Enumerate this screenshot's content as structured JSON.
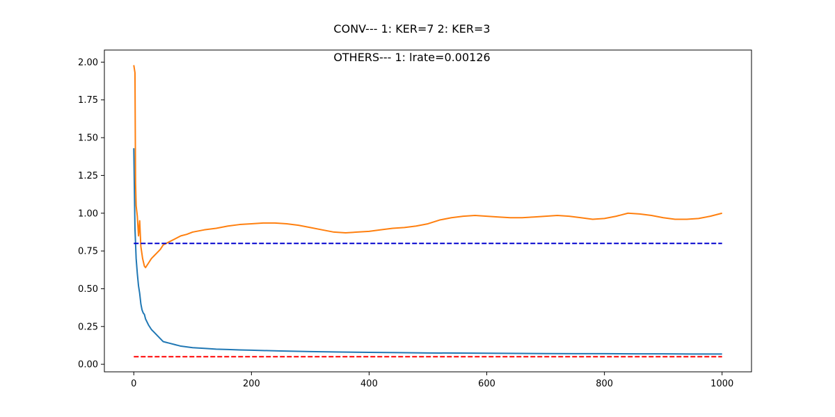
{
  "chart_data": {
    "type": "line",
    "title": "CONV--- 1: KER=7   2: KER=3",
    "subtitle": "OTHERS--- 1: lrate=0.00126",
    "xlabel": "",
    "ylabel": "",
    "xlim": [
      -50,
      1050
    ],
    "ylim": [
      -0.05,
      2.08
    ],
    "grid": false,
    "legend": "none",
    "x_ticks": [
      0,
      200,
      400,
      600,
      800,
      1000
    ],
    "x_tick_labels": [
      "0",
      "200",
      "400",
      "600",
      "800",
      "1000"
    ],
    "y_ticks": [
      0.0,
      0.25,
      0.5,
      0.75,
      1.0,
      1.25,
      1.5,
      1.75,
      2.0
    ],
    "y_tick_labels": [
      "0.00",
      "0.25",
      "0.50",
      "0.75",
      "1.00",
      "1.25",
      "1.50",
      "1.75",
      "2.00"
    ],
    "series": [
      {
        "color": "#1f77b4",
        "style": "solid",
        "points": [
          [
            0,
            1.43
          ],
          [
            2,
            0.9
          ],
          [
            4,
            0.7
          ],
          [
            6,
            0.6
          ],
          [
            8,
            0.52
          ],
          [
            10,
            0.47
          ],
          [
            12,
            0.4
          ],
          [
            14,
            0.36
          ],
          [
            16,
            0.34
          ],
          [
            18,
            0.33
          ],
          [
            20,
            0.3
          ],
          [
            25,
            0.26
          ],
          [
            30,
            0.23
          ],
          [
            35,
            0.21
          ],
          [
            40,
            0.19
          ],
          [
            45,
            0.17
          ],
          [
            50,
            0.15
          ],
          [
            55,
            0.145
          ],
          [
            60,
            0.14
          ],
          [
            70,
            0.13
          ],
          [
            80,
            0.12
          ],
          [
            90,
            0.115
          ],
          [
            100,
            0.11
          ],
          [
            120,
            0.105
          ],
          [
            140,
            0.1
          ],
          [
            160,
            0.098
          ],
          [
            180,
            0.095
          ],
          [
            200,
            0.093
          ],
          [
            250,
            0.088
          ],
          [
            300,
            0.084
          ],
          [
            350,
            0.081
          ],
          [
            400,
            0.079
          ],
          [
            450,
            0.077
          ],
          [
            500,
            0.075
          ],
          [
            550,
            0.074
          ],
          [
            600,
            0.073
          ],
          [
            650,
            0.072
          ],
          [
            700,
            0.071
          ],
          [
            750,
            0.07
          ],
          [
            800,
            0.07
          ],
          [
            850,
            0.069
          ],
          [
            900,
            0.069
          ],
          [
            950,
            0.068
          ],
          [
            1000,
            0.068
          ]
        ]
      },
      {
        "color": "#ff7f0e",
        "style": "solid",
        "points": [
          [
            0,
            1.98
          ],
          [
            2,
            1.93
          ],
          [
            3,
            1.2
          ],
          [
            4,
            1.05
          ],
          [
            6,
            0.98
          ],
          [
            8,
            0.85
          ],
          [
            10,
            0.95
          ],
          [
            12,
            0.78
          ],
          [
            15,
            0.7
          ],
          [
            18,
            0.65
          ],
          [
            20,
            0.64
          ],
          [
            25,
            0.67
          ],
          [
            30,
            0.7
          ],
          [
            35,
            0.72
          ],
          [
            40,
            0.74
          ],
          [
            45,
            0.76
          ],
          [
            50,
            0.79
          ],
          [
            60,
            0.81
          ],
          [
            70,
            0.83
          ],
          [
            80,
            0.85
          ],
          [
            90,
            0.86
          ],
          [
            100,
            0.875
          ],
          [
            120,
            0.89
          ],
          [
            140,
            0.9
          ],
          [
            160,
            0.915
          ],
          [
            180,
            0.925
          ],
          [
            200,
            0.93
          ],
          [
            220,
            0.935
          ],
          [
            240,
            0.935
          ],
          [
            260,
            0.93
          ],
          [
            280,
            0.92
          ],
          [
            300,
            0.905
          ],
          [
            320,
            0.89
          ],
          [
            340,
            0.875
          ],
          [
            360,
            0.87
          ],
          [
            380,
            0.875
          ],
          [
            400,
            0.88
          ],
          [
            420,
            0.89
          ],
          [
            440,
            0.9
          ],
          [
            460,
            0.905
          ],
          [
            480,
            0.915
          ],
          [
            500,
            0.93
          ],
          [
            520,
            0.955
          ],
          [
            540,
            0.97
          ],
          [
            560,
            0.98
          ],
          [
            580,
            0.985
          ],
          [
            600,
            0.98
          ],
          [
            620,
            0.975
          ],
          [
            640,
            0.97
          ],
          [
            660,
            0.97
          ],
          [
            680,
            0.975
          ],
          [
            700,
            0.98
          ],
          [
            720,
            0.985
          ],
          [
            740,
            0.98
          ],
          [
            760,
            0.97
          ],
          [
            780,
            0.96
          ],
          [
            800,
            0.965
          ],
          [
            820,
            0.98
          ],
          [
            840,
            1.0
          ],
          [
            860,
            0.995
          ],
          [
            880,
            0.985
          ],
          [
            900,
            0.97
          ],
          [
            920,
            0.96
          ],
          [
            940,
            0.96
          ],
          [
            960,
            0.965
          ],
          [
            980,
            0.98
          ],
          [
            1000,
            1.0
          ]
        ]
      },
      {
        "color": "#0000cd",
        "style": "dashed",
        "points": [
          [
            0,
            0.8
          ],
          [
            1000,
            0.8
          ]
        ]
      },
      {
        "color": "#ff0000",
        "style": "dashed",
        "points": [
          [
            0,
            0.05
          ],
          [
            1000,
            0.05
          ]
        ]
      }
    ]
  }
}
